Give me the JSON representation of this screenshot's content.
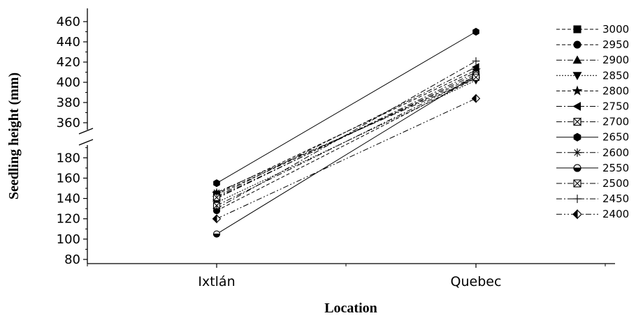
{
  "chart_data": {
    "type": "line",
    "xlabel": "Location",
    "ylabel": "Seedling height (mm)",
    "categories": [
      "Ixtlán",
      "Quebec"
    ],
    "y_ticks_lower": [
      "80",
      "100",
      "120",
      "140",
      "160",
      "180"
    ],
    "y_ticks_upper": [
      "360",
      "380",
      "400",
      "420",
      "440",
      "460"
    ],
    "y_axis_break": [
      190,
      350
    ],
    "legend_position": "right",
    "grid": false,
    "series": [
      {
        "name": "3000",
        "marker": "square",
        "dash": "dashed",
        "values": [
          144,
          406
        ]
      },
      {
        "name": "2950",
        "marker": "circle",
        "dash": "dashed",
        "values": [
          128,
          404
        ]
      },
      {
        "name": "2900",
        "marker": "triangle-up",
        "dash": "dashdot",
        "values": [
          140,
          410
        ]
      },
      {
        "name": "2850",
        "marker": "triangle-down",
        "dash": "dotted",
        "values": [
          136,
          402
        ]
      },
      {
        "name": "2800",
        "marker": "star",
        "dash": "dashed",
        "values": [
          145,
          412
        ]
      },
      {
        "name": "2750",
        "marker": "triangle-left",
        "dash": "dashdot",
        "values": [
          142,
          415
        ]
      },
      {
        "name": "2700",
        "marker": "hourglass",
        "dash": "dashdot",
        "values": [
          141,
          408
        ]
      },
      {
        "name": "2650",
        "marker": "hexagon",
        "dash": "solid",
        "values": [
          155,
          450
        ]
      },
      {
        "name": "2600",
        "marker": "asterisk",
        "dash": "dashdot",
        "values": [
          146,
          404
        ]
      },
      {
        "name": "2550",
        "marker": "half-circle",
        "dash": "solid",
        "values": [
          105,
          407
        ]
      },
      {
        "name": "2500",
        "marker": "boxed-x",
        "dash": "dashdot",
        "values": [
          133,
          405
        ]
      },
      {
        "name": "2450",
        "marker": "plus",
        "dash": "dashdot",
        "values": [
          130,
          421
        ]
      },
      {
        "name": "2400",
        "marker": "half-diamond",
        "dash": "dashdotdot",
        "values": [
          120,
          384
        ]
      }
    ]
  }
}
